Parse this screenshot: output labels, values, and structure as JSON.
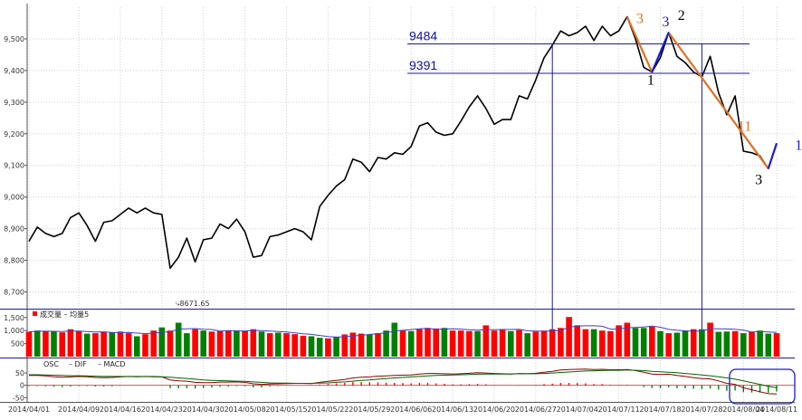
{
  "chart_data": {
    "type": "line",
    "price_panel": {
      "ylim": [
        8650,
        9600
      ],
      "yticks": [
        8700,
        8800,
        8900,
        9000,
        9100,
        9200,
        9300,
        9400,
        9500
      ],
      "yticklabels": [
        "8,700",
        "8,800",
        "8,900",
        "9,000",
        "9,100",
        "9,200",
        "9,300",
        "9,400",
        "9,500"
      ],
      "low_annotation": "8671.65",
      "close": [
        8860,
        8905,
        8885,
        8875,
        8885,
        8935,
        8950,
        8910,
        8860,
        8920,
        8925,
        8945,
        8965,
        8950,
        8965,
        8950,
        8945,
        8775,
        8810,
        8870,
        8795,
        8865,
        8870,
        8915,
        8900,
        8930,
        8890,
        8810,
        8815,
        8875,
        8880,
        8890,
        8900,
        8890,
        8865,
        8970,
        9005,
        9035,
        9055,
        9120,
        9110,
        9080,
        9125,
        9120,
        9140,
        9135,
        9160,
        9225,
        9235,
        9205,
        9195,
        9200,
        9240,
        9285,
        9320,
        9280,
        9230,
        9245,
        9245,
        9320,
        9310,
        9370,
        9440,
        9480,
        9525,
        9510,
        9520,
        9540,
        9495,
        9540,
        9510,
        9525,
        9570,
        9500,
        9410,
        9395,
        9440,
        9520,
        9445,
        9425,
        9395,
        9380,
        9445,
        9330,
        9260,
        9320,
        9145,
        9140,
        9130,
        9090,
        9170
      ],
      "levels": [
        {
          "value": 9484,
          "label": "9484"
        },
        {
          "value": 9391,
          "label": "9391"
        }
      ],
      "wave_labels": [
        "3",
        "3",
        "2",
        "1",
        "11",
        "1",
        "3"
      ]
    },
    "volume_panel": {
      "title": "成交量",
      "ma_label": "均量5",
      "ylim": [
        0,
        1700
      ],
      "yticks": [
        500,
        1000,
        1500
      ],
      "yticklabels": [
        "500",
        "1,000",
        "1,500"
      ],
      "up_color": "#ff0000",
      "down_color": "#008000",
      "volume": [
        950,
        1000,
        970,
        960,
        930,
        1050,
        980,
        880,
        900,
        950,
        920,
        960,
        900,
        780,
        860,
        1000,
        1120,
        1000,
        1300,
        900,
        1050,
        1000,
        960,
        980,
        1000,
        1000,
        980,
        1050,
        960,
        900,
        920,
        900,
        860,
        800,
        780,
        720,
        700,
        750,
        850,
        920,
        880,
        850,
        900,
        1000,
        1300,
        1000,
        980,
        1050,
        1100,
        1080,
        1100,
        1000,
        1000,
        980,
        980,
        1200,
        1000,
        1050,
        980,
        1020,
        900,
        960,
        1000,
        1050,
        1100,
        1520,
        1200,
        1050,
        1050,
        1000,
        980,
        1200,
        1300,
        1100,
        1100,
        1150,
        980,
        900,
        920,
        1000,
        1050,
        1050,
        1300,
        950,
        960,
        980,
        900,
        950,
        1000,
        880,
        900
      ],
      "up": [
        true,
        false,
        true,
        false,
        true,
        true,
        true,
        false,
        true,
        true,
        false,
        true,
        true,
        false,
        true,
        true,
        false,
        true,
        false,
        false,
        true,
        false,
        true,
        true,
        true,
        false,
        true,
        true,
        false,
        true,
        false,
        true,
        true,
        true,
        false,
        false,
        true,
        false,
        true,
        true,
        true,
        false,
        true,
        false,
        false,
        true,
        false,
        true,
        true,
        true,
        false,
        true,
        true,
        true,
        false,
        true,
        true,
        true,
        false,
        true,
        false,
        true,
        true,
        true,
        true,
        true,
        true,
        true,
        false,
        true,
        true,
        true,
        true,
        false,
        false,
        true,
        false,
        true,
        false,
        false,
        true,
        false,
        true,
        false,
        false,
        true,
        false,
        true,
        false,
        false,
        true
      ]
    },
    "macd_panel": {
      "labels": [
        "OSC",
        "DIF",
        "MACD"
      ],
      "ylim": [
        -60,
        65
      ],
      "yticks": [
        -50,
        0,
        50
      ],
      "yticklabels": [
        "-50",
        "0",
        "50"
      ],
      "dif": [
        40,
        40,
        38,
        35,
        33,
        34,
        36,
        35,
        32,
        31,
        32,
        34,
        36,
        35,
        36,
        35,
        34,
        22,
        18,
        17,
        12,
        11,
        11,
        13,
        13,
        14,
        12,
        6,
        4,
        5,
        6,
        7,
        8,
        8,
        7,
        12,
        16,
        20,
        24,
        30,
        33,
        34,
        37,
        38,
        40,
        41,
        42,
        46,
        48,
        48,
        47,
        46,
        47,
        49,
        51,
        50,
        48,
        47,
        46,
        48,
        47,
        49,
        53,
        57,
        62,
        64,
        65,
        66,
        64,
        65,
        63,
        63,
        64,
        60,
        53,
        46,
        44,
        45,
        40,
        36,
        31,
        27,
        26,
        18,
        8,
        4,
        -10,
        -18,
        -26,
        -34,
        -35
      ],
      "macd": [
        43,
        43,
        42,
        41,
        40,
        39,
        39,
        38,
        37,
        36,
        36,
        36,
        36,
        36,
        36,
        36,
        35,
        33,
        30,
        28,
        25,
        22,
        20,
        19,
        18,
        17,
        16,
        14,
        12,
        10,
        9,
        9,
        8,
        8,
        8,
        9,
        10,
        12,
        14,
        17,
        20,
        22,
        25,
        27,
        30,
        32,
        34,
        36,
        38,
        40,
        41,
        42,
        43,
        44,
        45,
        46,
        46,
        46,
        46,
        47,
        47,
        47,
        48,
        50,
        52,
        54,
        56,
        58,
        59,
        60,
        61,
        61,
        62,
        61,
        60,
        57,
        55,
        53,
        51,
        48,
        45,
        42,
        39,
        35,
        30,
        25,
        18,
        11,
        4,
        -4,
        -10
      ],
      "osc": [
        -3,
        -3,
        -4,
        -6,
        -7,
        -5,
        -3,
        -3,
        -5,
        -5,
        -4,
        -2,
        0,
        -1,
        0,
        -1,
        -1,
        -11,
        -12,
        -11,
        -13,
        -11,
        -9,
        -6,
        -5,
        -3,
        -4,
        -8,
        -8,
        -5,
        -3,
        -2,
        0,
        0,
        -1,
        3,
        6,
        8,
        10,
        13,
        13,
        12,
        12,
        11,
        10,
        9,
        8,
        10,
        10,
        8,
        6,
        4,
        4,
        5,
        6,
        4,
        2,
        1,
        0,
        1,
        0,
        2,
        5,
        7,
        10,
        10,
        9,
        8,
        5,
        5,
        2,
        2,
        2,
        -1,
        -7,
        -11,
        -11,
        -8,
        -11,
        -12,
        -14,
        -15,
        -13,
        -17,
        -22,
        -21,
        -28,
        -29,
        -30,
        -30,
        -25
      ],
      "dif_color": "#8b0000",
      "macd_color": "#006400"
    },
    "x_axis": {
      "ticks": [
        {
          "i": 0,
          "label": "2014/04/01"
        },
        {
          "i": 6,
          "label": "2014/04/09"
        },
        {
          "i": 11,
          "label": "2014/04/16"
        },
        {
          "i": 16,
          "label": "2014/04/23"
        },
        {
          "i": 21,
          "label": "2014/04/30"
        },
        {
          "i": 26,
          "label": "2014/05/08"
        },
        {
          "i": 31,
          "label": "2014/05/15"
        },
        {
          "i": 36,
          "label": "2014/05/22"
        },
        {
          "i": 41,
          "label": "2014/05/29"
        },
        {
          "i": 46,
          "label": "2014/06/06"
        },
        {
          "i": 51,
          "label": "2014/06/13"
        },
        {
          "i": 56,
          "label": "2014/06/20"
        },
        {
          "i": 61,
          "label": "2014/06/27"
        },
        {
          "i": 66,
          "label": "2014/07/04"
        },
        {
          "i": 71,
          "label": "2014/07/11"
        },
        {
          "i": 76,
          "label": "2014/07/18"
        },
        {
          "i": 81,
          "label": "2014/07/28"
        },
        {
          "i": 86,
          "label": "2014/08/04"
        },
        {
          "i": 90,
          "label": "2014/08/11"
        }
      ]
    }
  }
}
